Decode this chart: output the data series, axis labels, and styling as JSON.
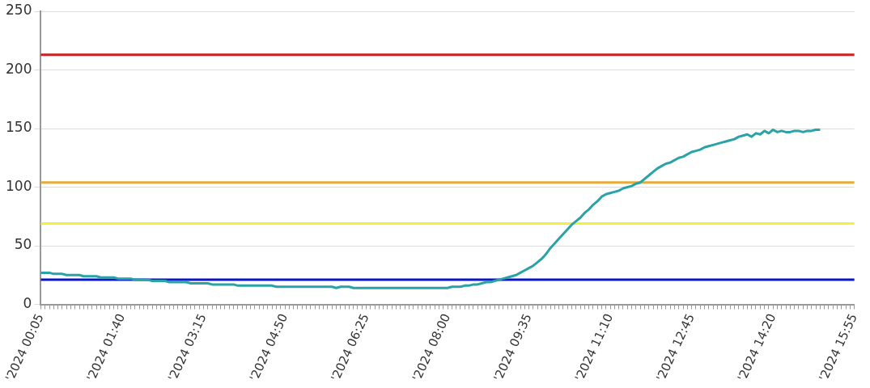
{
  "chart_data": {
    "type": "line",
    "categories": [
      "'2024 00:05",
      null,
      null,
      null,
      null,
      null,
      null,
      null,
      null,
      null,
      null,
      null,
      null,
      null,
      null,
      null,
      null,
      null,
      null,
      "'2024 01:40",
      null,
      null,
      null,
      null,
      null,
      null,
      null,
      null,
      null,
      null,
      null,
      null,
      null,
      null,
      null,
      null,
      null,
      null,
      "'2024 03:15",
      null,
      null,
      null,
      null,
      null,
      null,
      null,
      null,
      null,
      null,
      null,
      null,
      null,
      null,
      null,
      null,
      null,
      null,
      "'2024 04:50",
      null,
      null,
      null,
      null,
      null,
      null,
      null,
      null,
      null,
      null,
      null,
      null,
      null,
      null,
      null,
      null,
      null,
      null,
      "'2024 06:25",
      null,
      null,
      null,
      null,
      null,
      null,
      null,
      null,
      null,
      null,
      null,
      null,
      null,
      null,
      null,
      null,
      null,
      null,
      "'2024 08:00",
      null,
      null,
      null,
      null,
      null,
      null,
      null,
      null,
      null,
      null,
      null,
      null,
      null,
      null,
      null,
      null,
      null,
      null,
      "'2024 09:35",
      null,
      null,
      null,
      null,
      null,
      null,
      null,
      null,
      null,
      null,
      null,
      null,
      null,
      null,
      null,
      null,
      null,
      null,
      "'2024 11:10",
      null,
      null,
      null,
      null,
      null,
      null,
      null,
      null,
      null,
      null,
      null,
      null,
      null,
      null,
      null,
      null,
      null,
      null,
      "'2024 12:45",
      null,
      null,
      null,
      null,
      null,
      null,
      null,
      null,
      null,
      null,
      null,
      null,
      null,
      null,
      null,
      null,
      null,
      null,
      "'2024 14:20",
      null,
      null,
      null,
      null,
      null,
      null,
      null,
      null,
      null,
      null,
      null,
      null,
      null,
      null,
      null,
      null,
      null,
      null,
      "'2024 15:55"
    ],
    "series": [
      {
        "color": "#2aa3a8",
        "values": [
          27,
          27,
          27,
          26,
          26,
          26,
          25,
          25,
          25,
          25,
          24,
          24,
          24,
          24,
          23,
          23,
          23,
          23,
          22,
          22,
          22,
          22,
          21,
          21,
          21,
          21,
          20,
          20,
          20,
          20,
          19,
          19,
          19,
          19,
          19,
          18,
          18,
          18,
          18,
          18,
          17,
          17,
          17,
          17,
          17,
          17,
          16,
          16,
          16,
          16,
          16,
          16,
          16,
          16,
          16,
          15,
          15,
          15,
          15,
          15,
          15,
          15,
          15,
          15,
          15,
          15,
          15,
          15,
          15,
          14,
          15,
          15,
          15,
          14,
          14,
          14,
          14,
          14,
          14,
          14,
          14,
          14,
          14,
          14,
          14,
          14,
          14,
          14,
          14,
          14,
          14,
          14,
          14,
          14,
          14,
          14,
          15,
          15,
          15,
          16,
          16,
          17,
          17,
          18,
          19,
          19,
          20,
          21,
          22,
          23,
          24,
          25,
          27,
          29,
          31,
          33,
          36,
          39,
          43,
          48,
          52,
          56,
          60,
          64,
          68,
          71,
          74,
          78,
          81,
          85,
          88,
          92,
          94,
          95,
          96,
          97,
          99,
          100,
          101,
          103,
          104,
          107,
          110,
          113,
          116,
          118,
          120,
          121,
          123,
          125,
          126,
          128,
          130,
          131,
          132,
          134,
          135,
          136,
          137,
          138,
          139,
          140,
          141,
          143,
          144,
          145,
          143,
          146,
          145,
          148,
          146,
          149,
          147,
          148,
          147,
          147,
          148,
          148,
          147,
          148,
          148,
          149,
          149,
          null,
          null,
          null,
          null,
          null,
          null,
          null,
          null
        ]
      }
    ],
    "ylim": [
      0,
      250
    ],
    "yticks": [
      0,
      50,
      100,
      150,
      200,
      250
    ],
    "ref_lines": [
      {
        "axis": "y",
        "value": 213,
        "color": "#cc1f1f"
      },
      {
        "axis": "y",
        "value": 104,
        "color": "#e6ac3a"
      },
      {
        "axis": "y",
        "value": 69,
        "color": "#f5ef3a"
      },
      {
        "axis": "y",
        "value": 21,
        "color": "#0a14c8"
      }
    ],
    "grid": "y",
    "legend": false,
    "marker": "none",
    "line_style": "solid"
  }
}
